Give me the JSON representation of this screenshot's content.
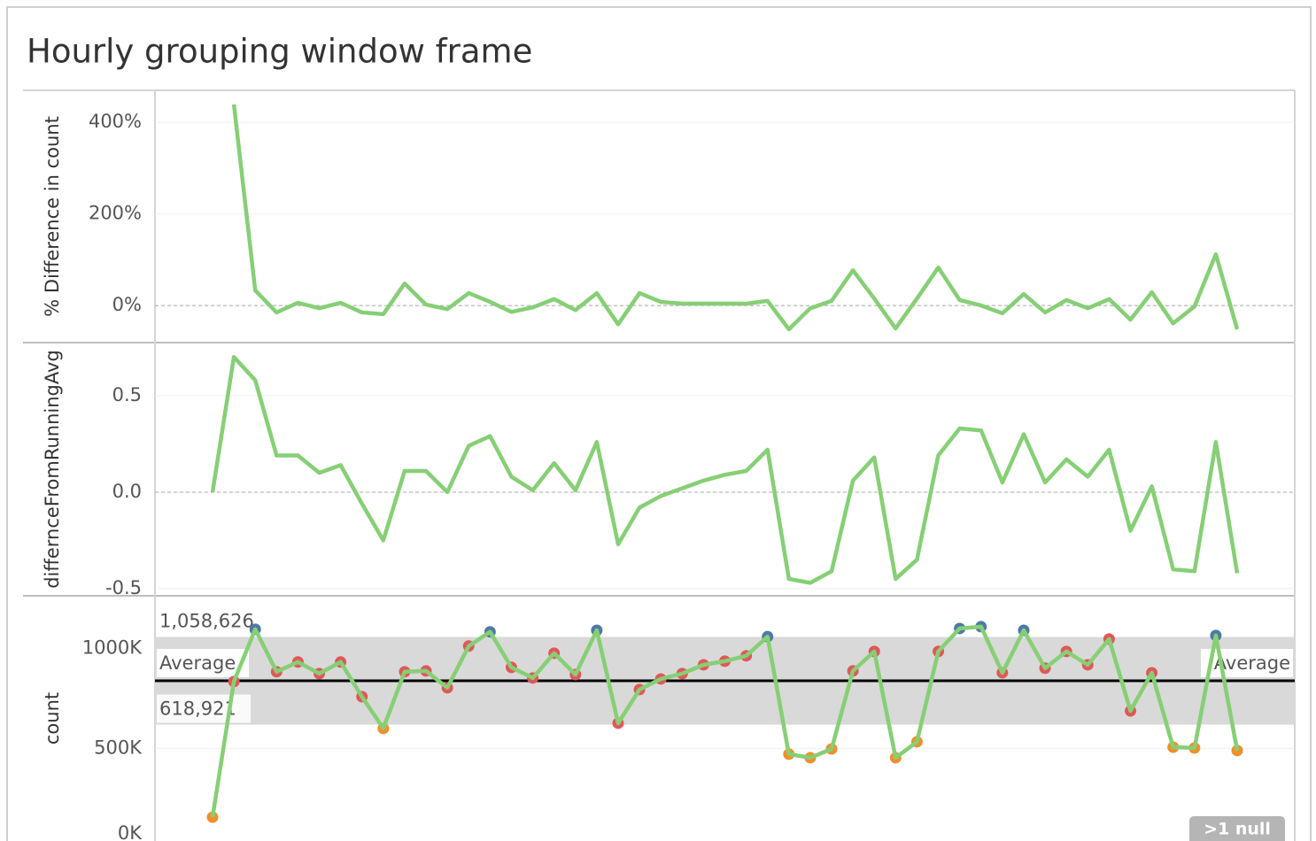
{
  "title": "Hourly grouping window frame",
  "chart_data": [
    {
      "type": "line",
      "ylabel": "% Difference in count",
      "color": "#86cf75",
      "ylim": [
        -81,
        470
      ],
      "yticks": [
        {
          "value": 0,
          "label": "0%"
        },
        {
          "value": 200,
          "label": "200%"
        },
        {
          "value": 400,
          "label": "400%"
        }
      ],
      "zero_line": true,
      "values": [
        null,
        439,
        33,
        -15,
        6,
        -6,
        6,
        -15,
        -19,
        48,
        2,
        -8,
        27,
        8,
        -14,
        -4,
        14,
        -10,
        27,
        -41,
        27,
        8,
        4,
        4,
        4,
        4,
        10,
        -52,
        -6,
        10,
        77,
        15,
        -50,
        15,
        83,
        12,
        0,
        -17,
        25,
        -15,
        12,
        -6,
        14,
        -31,
        29,
        -39,
        -2,
        112,
        -52
      ]
    },
    {
      "type": "line",
      "ylabel": "differnceFromRunningAvg",
      "color": "#86cf75",
      "ylim": [
        -0.537,
        0.775
      ],
      "yticks": [
        -0.5,
        {
          "value": 0,
          "label": "0.0"
        },
        0.5
      ],
      "zero_line": true,
      "values": [
        0,
        0.7,
        0.58,
        0.19,
        0.19,
        0.1,
        0.14,
        -0.06,
        -0.25,
        0.11,
        0.11,
        0,
        0.24,
        0.29,
        0.08,
        0.01,
        0.15,
        0.01,
        0.26,
        -0.27,
        -0.08,
        -0.02,
        0.02,
        0.06,
        0.09,
        0.11,
        0.22,
        -0.45,
        -0.47,
        -0.41,
        0.06,
        0.18,
        -0.45,
        -0.35,
        0.19,
        0.33,
        0.32,
        0.05,
        0.3,
        0.05,
        0.17,
        0.08,
        0.22,
        -0.2,
        0.03,
        -0.4,
        -0.41,
        0.26,
        -0.42
      ]
    },
    {
      "type": "line",
      "ylabel": "count",
      "color": "#86cf75",
      "ylim": [
        0,
        1265000
      ],
      "yticks": [
        {
          "value": 0,
          "label": "0K"
        },
        {
          "value": 500000,
          "label": "500K"
        },
        {
          "value": 1000000,
          "label": "1000K"
        }
      ],
      "markers": true,
      "above_color": "#4e79a7",
      "within_color": "#e15759",
      "below_color": "#f28e2b",
      "reference_band": {
        "upper": {
          "value": 1058626,
          "label": "1,058,626"
        },
        "lower": {
          "value": 618921,
          "label": "618,921"
        }
      },
      "reference_line": {
        "value": 839000,
        "label": "Average"
      },
      "annotation": ">1 null",
      "values": [
        155000,
        835000,
        1097000,
        884000,
        933000,
        875000,
        933000,
        759000,
        600000,
        884000,
        888000,
        804000,
        1013000,
        1084000,
        906000,
        853000,
        977000,
        870000,
        1092000,
        626000,
        795000,
        848000,
        875000,
        919000,
        937000,
        964000,
        1060000,
        471000,
        453000,
        497000,
        888000,
        986000,
        453000,
        533000,
        986000,
        1101000,
        1110000,
        879000,
        1092000,
        902000,
        986000,
        919000,
        1048000,
        688000,
        879000,
        506000,
        502000,
        1066000,
        489000
      ]
    }
  ]
}
